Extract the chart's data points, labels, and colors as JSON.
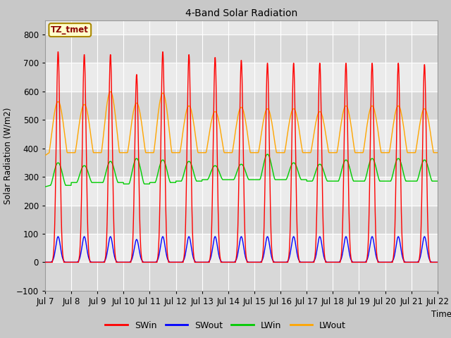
{
  "title": "4-Band Solar Radiation",
  "ylabel": "Solar Radiation (W/m2)",
  "xlabel": "Time",
  "ylim": [
    -100,
    850
  ],
  "xtick_labels": [
    "Jul 7",
    "Jul 8",
    "Jul 9",
    "Jul 10",
    "Jul 11",
    "Jul 12",
    "Jul 13",
    "Jul 14",
    "Jul 15",
    "Jul 16",
    "Jul 17",
    "Jul 18",
    "Jul 19",
    "Jul 20",
    "Jul 21",
    "Jul 22"
  ],
  "legend_labels": [
    "SWin",
    "SWout",
    "LWin",
    "LWout"
  ],
  "legend_colors": [
    "#ff0000",
    "#0000ff",
    "#00cc00",
    "#ffa500"
  ],
  "annotation_text": "TZ_tmet",
  "annotation_color": "#8B0000",
  "annotation_bg": "#ffffcc",
  "colors": {
    "SWin": "#ff0000",
    "SWout": "#0000ff",
    "LWin": "#00cc00",
    "LWout": "#ffa500"
  },
  "fig_bg": "#c8c8c8",
  "plot_bg": "#e8e8e8",
  "stripe_light": "#ebebeb",
  "stripe_dark": "#d8d8d8",
  "grid_color": "#ffffff",
  "num_days": 15,
  "points_per_day": 144,
  "SWin_peaks": [
    740,
    730,
    730,
    660,
    740,
    730,
    720,
    710,
    700,
    700,
    700,
    700,
    700,
    700,
    695
  ],
  "SWout_peaks": [
    90,
    90,
    90,
    80,
    90,
    90,
    90,
    90,
    90,
    90,
    90,
    90,
    90,
    90,
    90
  ],
  "LWin_night": [
    270,
    280,
    280,
    275,
    280,
    285,
    290,
    290,
    290,
    290,
    285,
    285,
    285,
    285,
    285
  ],
  "LWin_peak": [
    350,
    340,
    355,
    365,
    360,
    355,
    340,
    345,
    380,
    350,
    345,
    360,
    365,
    365,
    360
  ],
  "LWout_night": [
    385,
    385,
    385,
    385,
    385,
    385,
    385,
    385,
    385,
    385,
    385,
    385,
    385,
    385,
    385
  ],
  "LWout_peak": [
    565,
    555,
    600,
    560,
    595,
    550,
    530,
    545,
    540,
    540,
    530,
    550,
    550,
    550,
    540
  ]
}
